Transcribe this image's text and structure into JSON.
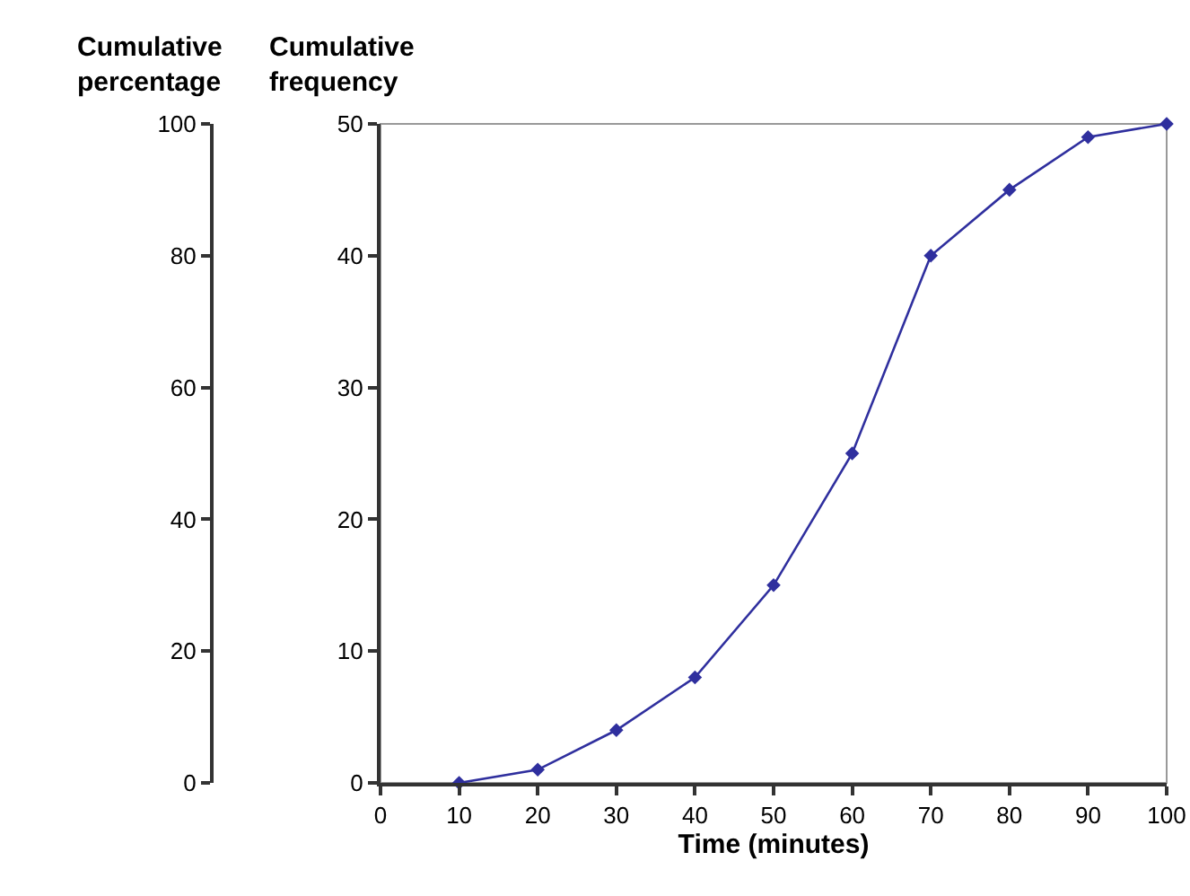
{
  "chart_data": {
    "type": "line",
    "xlabel": "Time (minutes)",
    "ylabel": "Cumulative\nfrequency",
    "y2label": "Cumulative\npercentage",
    "x": [
      10,
      20,
      30,
      40,
      50,
      60,
      70,
      80,
      90,
      100
    ],
    "series": [
      {
        "color": "#2f2f9e",
        "values": [
          0,
          1,
          4,
          8,
          15,
          25,
          40,
          45,
          49,
          50
        ]
      }
    ],
    "xlim": [
      0,
      100
    ],
    "xticks": [
      0,
      10,
      20,
      30,
      40,
      50,
      60,
      70,
      80,
      90,
      100
    ],
    "ylim": [
      0,
      50
    ],
    "yticks": [
      0,
      10,
      20,
      30,
      40,
      50
    ],
    "y2lim": [
      0,
      100
    ],
    "y2ticks": [
      0,
      20,
      40,
      60,
      80,
      100
    ],
    "marker": "diamond",
    "line_style": "solid",
    "grid": false,
    "legend": false
  }
}
